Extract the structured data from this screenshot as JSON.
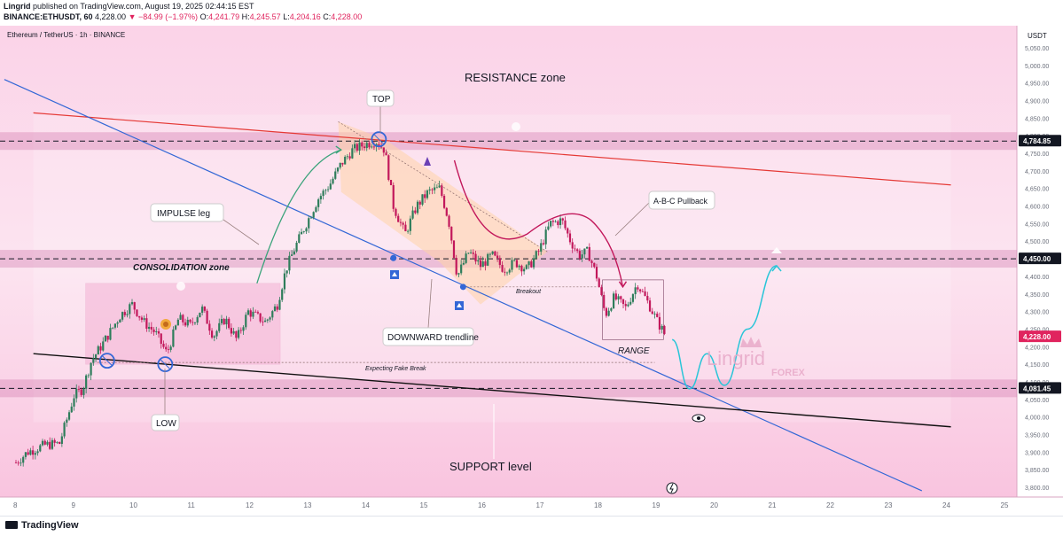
{
  "header": {
    "publisher": "Lingrid",
    "published_text": "published on TradingView.com, August 19, 2025 02:44:15 EST",
    "symbol": "BINANCE:ETHUSDT, 60",
    "last": "4,228.00",
    "change": "▼ −84.99 (−1.97%)",
    "open": "4,241.79",
    "high": "4,245.57",
    "low": "4,204.16",
    "close": "4,228.00"
  },
  "chart_title": "Ethereum / TetherUS · 1h · BINANCE",
  "currency": "USDT",
  "colors": {
    "background": "#fce4f1",
    "up": "#2e7d5b",
    "down": "#c2185b",
    "resistance": "#e53935",
    "trendline": "#3367d6",
    "support_line": "#111111",
    "projection": "#29c5d8"
  },
  "annotations": {
    "resistance": "RESISTANCE zone",
    "top": "TOP",
    "impulse": "IMPULSE leg",
    "consolidation": "CONSOLIDATION zone",
    "downward": "DOWNWARD trendline",
    "abc": "A-B-C Pullback",
    "breakout": "Breakout",
    "range": "RANGE",
    "fake_break": "Expecting Fake Break",
    "low": "LOW",
    "support": "SUPPORT level",
    "watermark_main": "Lingrid",
    "watermark_sub": "FOREX"
  },
  "chart_data": {
    "type": "candlestick",
    "title": "Ethereum / TetherUS · 1h · BINANCE",
    "y_axis": {
      "unit": "USDT",
      "range": [
        3780,
        5080
      ],
      "ticks": [
        "5,050.00",
        "5,000.00",
        "4,950.00",
        "4,900.00",
        "4,850.00",
        "4,800.00",
        "4,750.00",
        "4,700.00",
        "4,650.00",
        "4,600.00",
        "4,550.00",
        "4,500.00",
        "4,400.00",
        "4,350.00",
        "4,300.00",
        "4,250.00",
        "4,200.00",
        "4,150.00",
        "4,100.00",
        "4,050.00",
        "4,000.00",
        "3,950.00",
        "3,900.00",
        "3,850.00",
        "3,800.00"
      ]
    },
    "x_axis": {
      "ticks": [
        "8",
        "9",
        "10",
        "11",
        "12",
        "13",
        "14",
        "15",
        "16",
        "17",
        "18",
        "19",
        "20",
        "21",
        "22",
        "23",
        "24",
        "25"
      ]
    },
    "price_labels": [
      {
        "value": 4784.85,
        "text": "4,784.85",
        "style": "dark"
      },
      {
        "value": 4450,
        "text": "4,450.00",
        "style": "dark"
      },
      {
        "value": 4228,
        "text": "4,228.00",
        "style": "last"
      },
      {
        "value": 4081.45,
        "text": "4,081.45",
        "style": "dark"
      }
    ],
    "price_path": [
      [
        8.0,
        3870
      ],
      [
        8.2,
        3900
      ],
      [
        8.5,
        3920
      ],
      [
        8.75,
        3925
      ],
      [
        9.0,
        4060
      ],
      [
        9.15,
        4080
      ],
      [
        9.3,
        4160
      ],
      [
        9.5,
        4210
      ],
      [
        9.8,
        4290
      ],
      [
        10.0,
        4320
      ],
      [
        10.2,
        4270
      ],
      [
        10.4,
        4240
      ],
      [
        10.6,
        4180
      ],
      [
        10.8,
        4280
      ],
      [
        11.0,
        4260
      ],
      [
        11.2,
        4310
      ],
      [
        11.4,
        4230
      ],
      [
        11.6,
        4280
      ],
      [
        11.8,
        4220
      ],
      [
        12.0,
        4300
      ],
      [
        12.3,
        4270
      ],
      [
        12.5,
        4320
      ],
      [
        12.65,
        4420
      ],
      [
        12.8,
        4480
      ],
      [
        13.0,
        4550
      ],
      [
        13.2,
        4620
      ],
      [
        13.4,
        4660
      ],
      [
        13.6,
        4720
      ],
      [
        13.8,
        4760
      ],
      [
        14.0,
        4775
      ],
      [
        14.2,
        4785
      ],
      [
        14.35,
        4760
      ],
      [
        14.5,
        4600
      ],
      [
        14.7,
        4520
      ],
      [
        14.9,
        4600
      ],
      [
        15.1,
        4640
      ],
      [
        15.3,
        4650
      ],
      [
        15.45,
        4560
      ],
      [
        15.6,
        4400
      ],
      [
        15.8,
        4470
      ],
      [
        16.0,
        4430
      ],
      [
        16.2,
        4460
      ],
      [
        16.4,
        4420
      ],
      [
        16.6,
        4440
      ],
      [
        16.8,
        4420
      ],
      [
        17.0,
        4470
      ],
      [
        17.2,
        4550
      ],
      [
        17.4,
        4560
      ],
      [
        17.55,
        4500
      ],
      [
        17.7,
        4460
      ],
      [
        17.85,
        4470
      ],
      [
        18.0,
        4400
      ],
      [
        18.15,
        4290
      ],
      [
        18.3,
        4340
      ],
      [
        18.5,
        4310
      ],
      [
        18.7,
        4380
      ],
      [
        18.9,
        4320
      ],
      [
        19.05,
        4270
      ],
      [
        19.2,
        4228
      ]
    ],
    "levels": [
      {
        "name": "top",
        "value": 4784.85
      },
      {
        "name": "breakout",
        "value": 4450
      },
      {
        "name": "support",
        "value": 4081.45
      }
    ],
    "projection_path": [
      [
        19.3,
        4220
      ],
      [
        19.6,
        4080
      ],
      [
        19.9,
        4180
      ],
      [
        20.2,
        4090
      ],
      [
        20.6,
        4250
      ],
      [
        21.1,
        4430
      ]
    ]
  }
}
